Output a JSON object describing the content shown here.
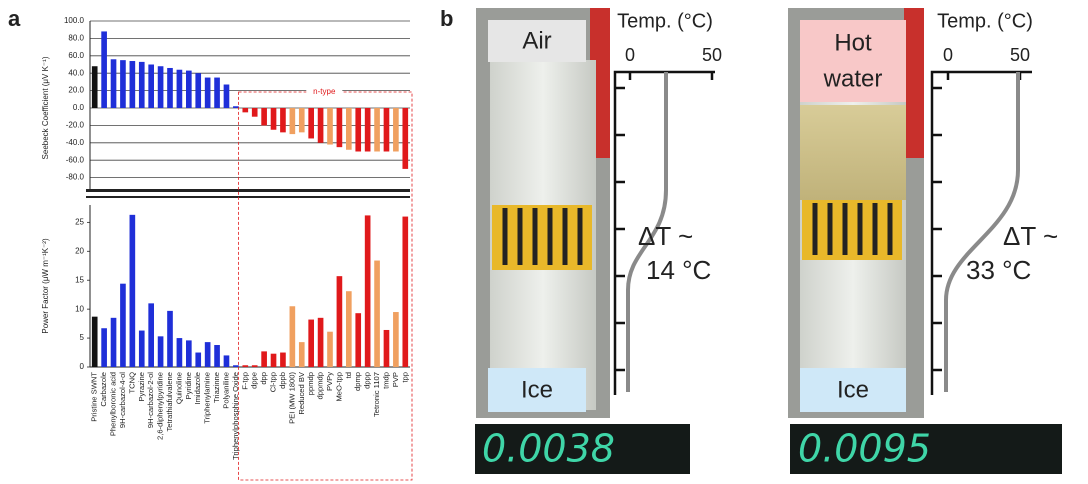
{
  "panel_labels": [
    "a",
    "b"
  ],
  "chart_data": {
    "type": "bar",
    "categories": [
      "Pristine SWNT",
      "Carbazole",
      "Phenylboronic acid",
      "9H-carbazol-4-ol",
      "TCNQ",
      "Pyrazine",
      "9H-carbazol-2-ol",
      "2,6-diphenylpyridine",
      "Tetrathiafulvalene",
      "Quinoline",
      "Pyridine",
      "Imidazole",
      "Triphenylamine",
      "Triazinne",
      "Polyaniline",
      "Triphenylphosphine Oxide",
      "F-tpp",
      "dppe",
      "dpp",
      "Cl-tpp",
      "dppb",
      "PEI (MW 1800)",
      "Reduced BV",
      "ppmdp",
      "dppmdp",
      "PVPy",
      "MeO-tpp",
      "td",
      "dpmp",
      "dppp",
      "Tetronic 1107",
      "tmdp",
      "PVP",
      "tpp"
    ],
    "colors": [
      "#111111",
      "#1f2fd8",
      "#1f2fd8",
      "#1f2fd8",
      "#1f2fd8",
      "#1f2fd8",
      "#1f2fd8",
      "#1f2fd8",
      "#1f2fd8",
      "#1f2fd8",
      "#1f2fd8",
      "#1f2fd8",
      "#1f2fd8",
      "#1f2fd8",
      "#1f2fd8",
      "#1f2fd8",
      "#e0191b",
      "#e0191b",
      "#e0191b",
      "#e0191b",
      "#e0191b",
      "#f0a060",
      "#f0a060",
      "#e0191b",
      "#e0191b",
      "#f0a060",
      "#e0191b",
      "#f0a060",
      "#e0191b",
      "#e0191b",
      "#f0a060",
      "#e0191b",
      "#f0a060",
      "#e0191b"
    ],
    "annotation": "n-type",
    "panels": [
      {
        "ylabel": "Seebeck Coefficient (μV K⁻¹)",
        "ylim": [
          -100,
          100
        ],
        "yticks": [
          {
            "value": 100,
            "label": "100.0"
          },
          {
            "value": 80,
            "label": "80.0"
          },
          {
            "value": 60,
            "label": "60.0"
          },
          {
            "value": 40,
            "label": "40.0"
          },
          {
            "value": 20,
            "label": "20.0"
          },
          {
            "value": 0,
            "label": "0.0"
          },
          {
            "value": -20,
            "label": "-20.0"
          },
          {
            "value": -40,
            "label": "-40.0"
          },
          {
            "value": -60,
            "label": "-60.0"
          },
          {
            "value": -80,
            "label": "-80.0"
          }
        ],
        "grid": true,
        "values": [
          48,
          88,
          56,
          55,
          54,
          53,
          50,
          48,
          46,
          44,
          43,
          40,
          35,
          35,
          27,
          2,
          -5,
          -10,
          -20,
          -25,
          -28,
          -30,
          -28,
          -35,
          -40,
          -42,
          -45,
          -48,
          -50,
          -50,
          -50,
          -50,
          -50,
          -70
        ]
      },
      {
        "ylabel": "Power Factor (μW m⁻¹K⁻²)",
        "ylim": [
          0,
          28
        ],
        "yticks": [
          0,
          5,
          10,
          15,
          20,
          25
        ],
        "grid": false,
        "values": [
          8.7,
          6.7,
          8.5,
          14.4,
          26.3,
          6.3,
          11,
          5.3,
          9.7,
          5,
          4.6,
          2.5,
          4.3,
          3.8,
          2,
          0.3,
          0.3,
          0.3,
          2.7,
          2.3,
          2.5,
          10.5,
          4.3,
          8.2,
          8.5,
          6.1,
          15.7,
          13.1,
          9.3,
          26.2,
          18.4,
          6.4,
          9.5,
          26
        ]
      }
    ]
  },
  "panel_b": [
    {
      "top_label": [
        "Air"
      ],
      "bottom_label": "Ice",
      "axis_title": "Temp. (°C)",
      "ticks": [
        "0",
        "50"
      ],
      "delta": [
        "ΔT ~",
        "14 °C"
      ],
      "display": "0.0038"
    },
    {
      "top_label": [
        "Hot",
        "water"
      ],
      "bottom_label": "Ice",
      "axis_title": "Temp. (°C)",
      "ticks": [
        "0",
        "50"
      ],
      "delta": [
        "ΔT ~",
        "33 °C"
      ],
      "display": "0.0095"
    }
  ]
}
